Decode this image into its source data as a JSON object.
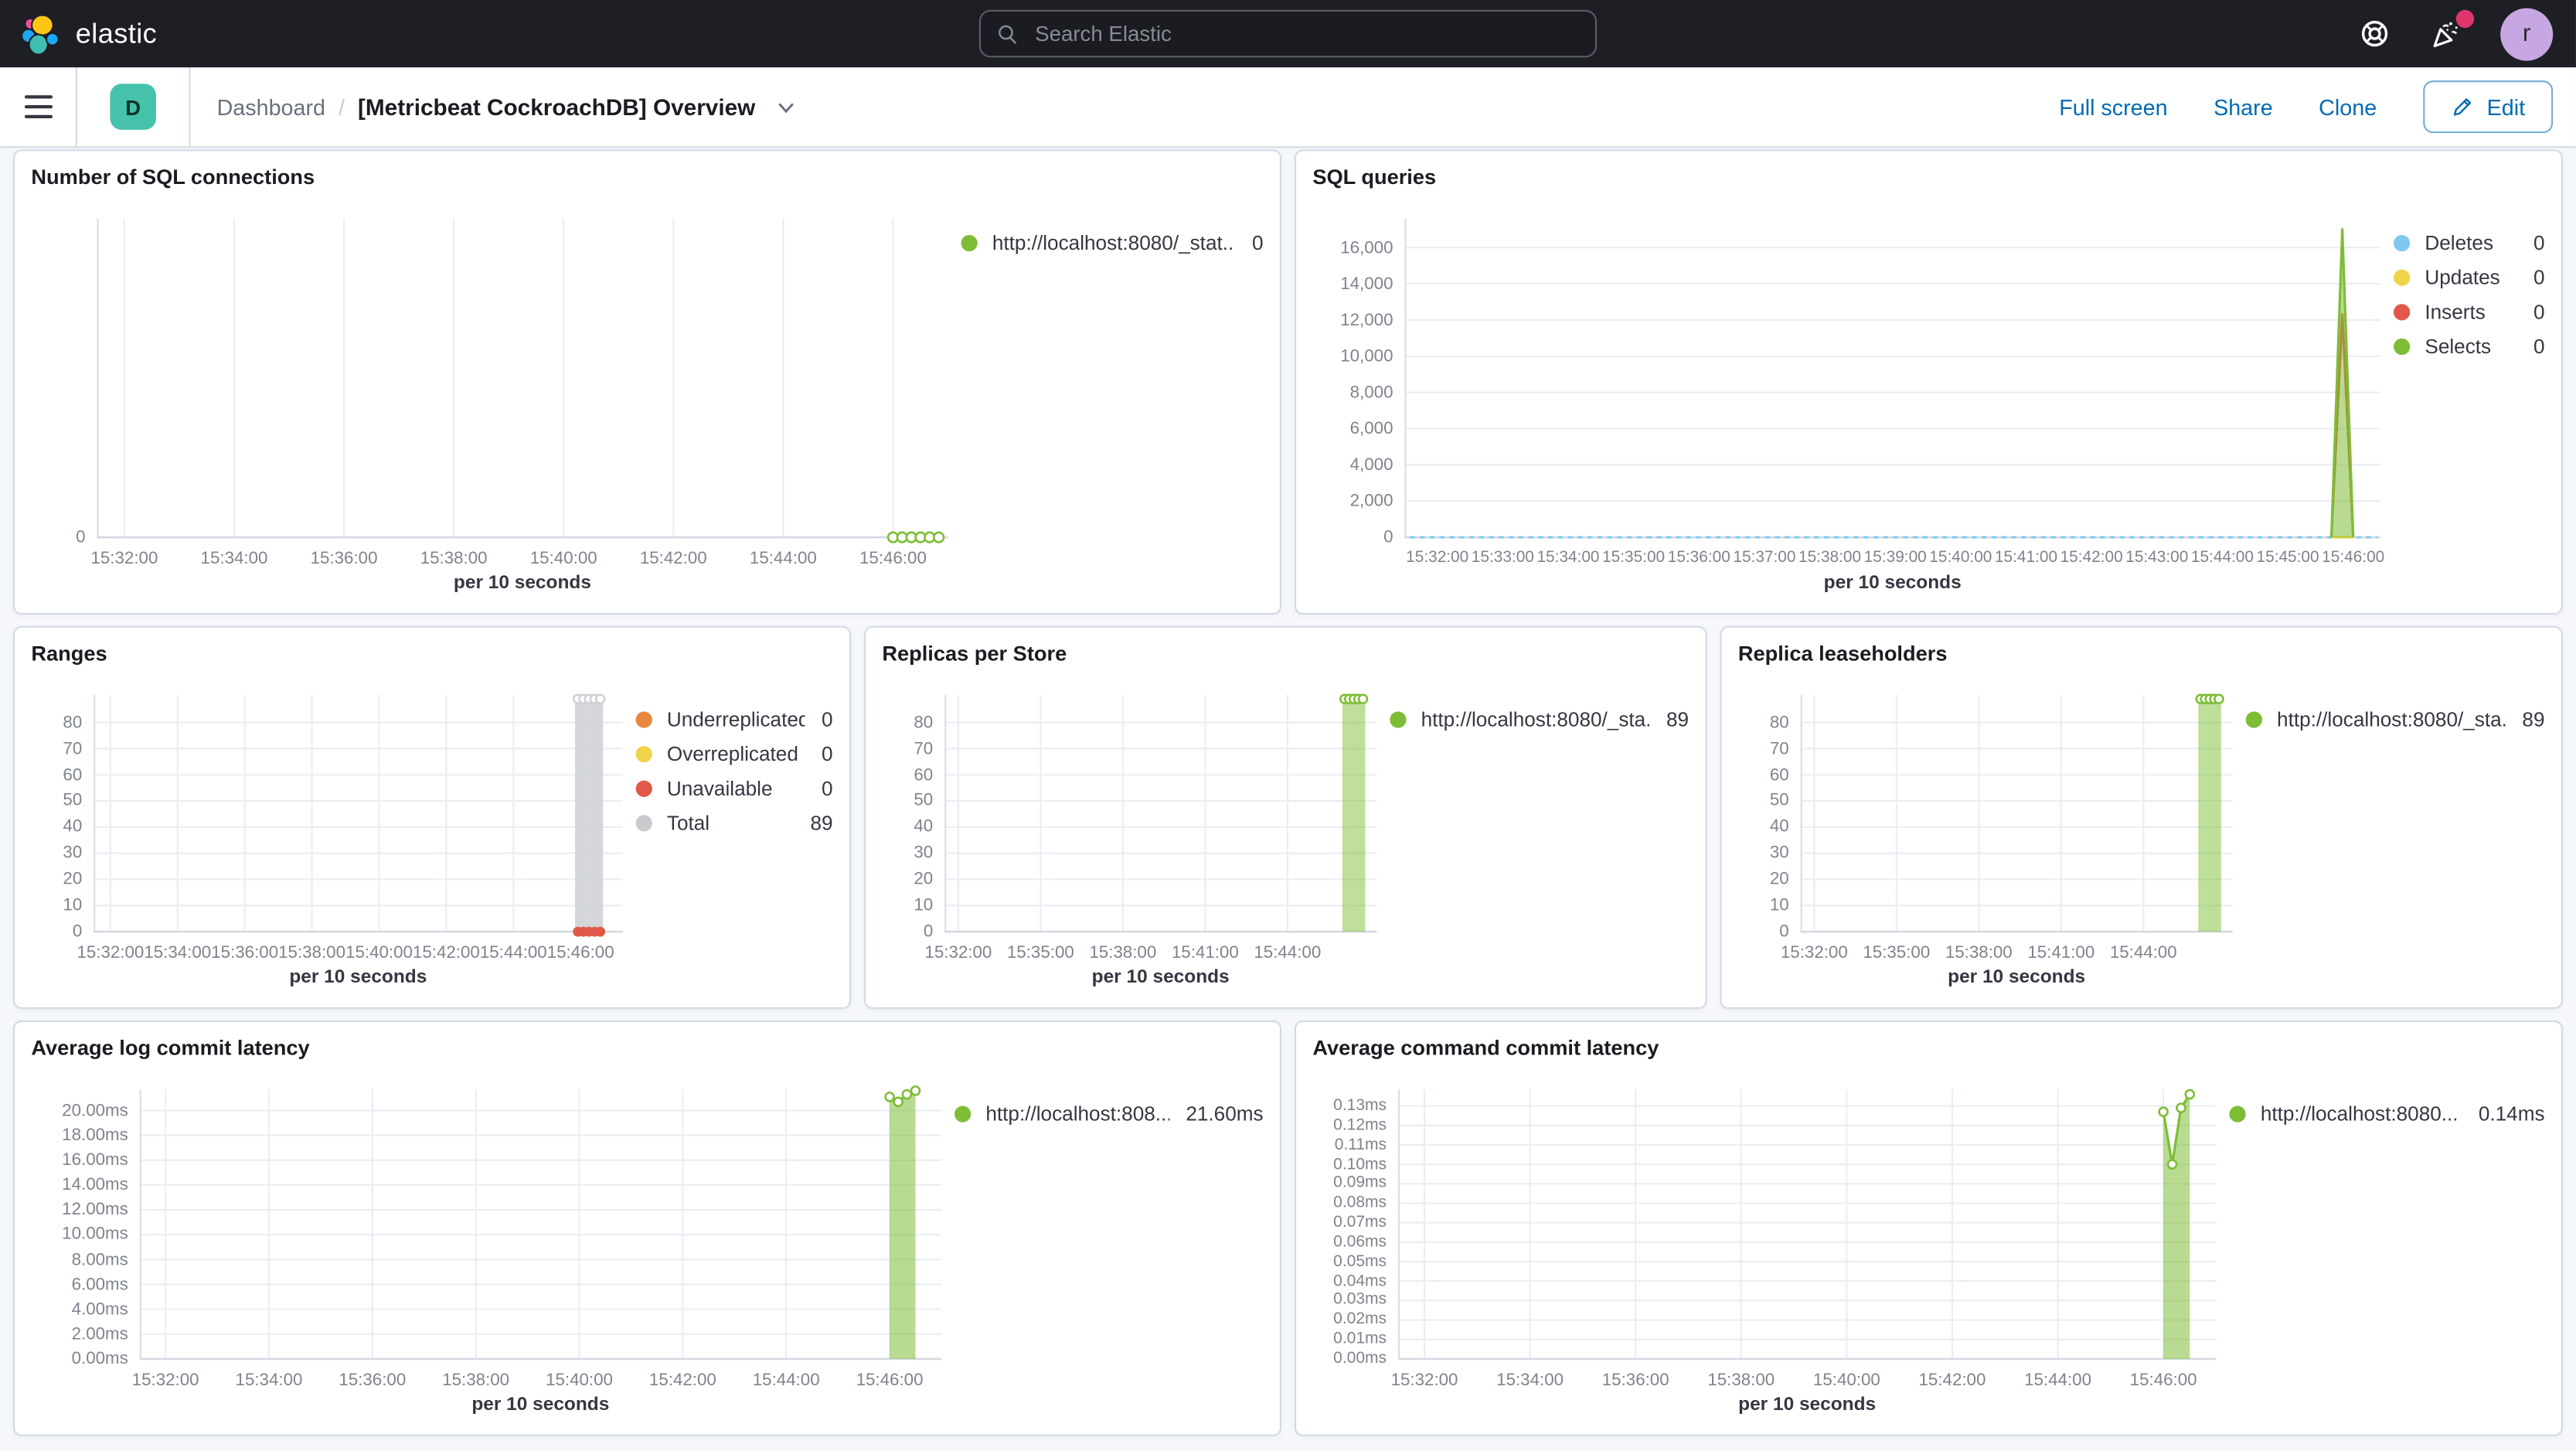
{
  "chrome": {
    "logo_text": "elastic",
    "search_placeholder": "Search Elastic",
    "avatar_initial": "r",
    "badge": "D",
    "breadcrumb_root": "Dashboard",
    "breadcrumb_sep": "/",
    "page_title": "[Metricbeat CockroachDB] Overview",
    "actions": {
      "full_screen": "Full screen",
      "share": "Share",
      "clone": "Clone",
      "edit": "Edit"
    }
  },
  "colors": {
    "header_bg": "#1d1f24",
    "link_blue": "#006bb4",
    "badge_teal": "#46c2aa",
    "series_green": "#7dbd36",
    "series_blue": "#7fc9f0",
    "series_yellow": "#f1d34b",
    "series_red": "#e0584a",
    "series_orange": "#e8883f",
    "series_gray": "#c9cbcf"
  },
  "panels": {
    "sql_connections": {
      "title": "Number of SQL connections",
      "axis_title": "per 10 seconds",
      "legend": [
        {
          "label": "http://localhost:8080/_stat...",
          "value": "0",
          "color": "#7dbd36"
        }
      ],
      "chart_data": {
        "type": "line",
        "x_domain": [
          "15:31:30",
          "15:47:00"
        ],
        "x_ticks": [
          "15:32:00",
          "15:34:00",
          "15:36:00",
          "15:38:00",
          "15:40:00",
          "15:42:00",
          "15:44:00",
          "15:46:00"
        ],
        "y_ticks": [
          {
            "label": "0",
            "v": 0
          }
        ],
        "ylim": [
          0,
          1
        ],
        "grid": {
          "v": true,
          "h": false
        },
        "series": [
          {
            "name": "http://localhost:8080/_stat...",
            "color": "#7dbd36",
            "type": "line",
            "width": 1.5,
            "markers": true,
            "marker_r": 3,
            "points": [
              [
                "15:46:00",
                0
              ],
              [
                "15:46:10",
                0
              ],
              [
                "15:46:20",
                0
              ],
              [
                "15:46:30",
                0
              ],
              [
                "15:46:40",
                0
              ],
              [
                "15:46:50",
                0
              ]
            ]
          }
        ]
      }
    },
    "sql_queries": {
      "title": "SQL queries",
      "axis_title": "per 10 seconds",
      "legend": [
        {
          "label": "Deletes",
          "value": "0",
          "color": "#7fc9f0"
        },
        {
          "label": "Updates",
          "value": "0",
          "color": "#f1d34b"
        },
        {
          "label": "Inserts",
          "value": "0",
          "color": "#e0584a"
        },
        {
          "label": "Selects",
          "value": "0",
          "color": "#7dbd36"
        }
      ],
      "chart_data": {
        "type": "line",
        "x_domain": [
          "15:31:30",
          "15:46:25"
        ],
        "x_ticks": [
          "15:32:00",
          "15:33:00",
          "15:34:00",
          "15:35:00",
          "15:36:00",
          "15:37:00",
          "15:38:00",
          "15:39:00",
          "15:40:00",
          "15:41:00",
          "15:42:00",
          "15:43:00",
          "15:44:00",
          "15:45:00",
          "15:46:00"
        ],
        "y_ticks": [
          {
            "label": "16,000",
            "v": 16000
          },
          {
            "label": "14,000",
            "v": 14000
          },
          {
            "label": "12,000",
            "v": 12000
          },
          {
            "label": "10,000",
            "v": 10000
          },
          {
            "label": "8,000",
            "v": 8000
          },
          {
            "label": "6,000",
            "v": 6000
          },
          {
            "label": "4,000",
            "v": 4000
          },
          {
            "label": "2,000",
            "v": 2000
          },
          {
            "label": "0",
            "v": 0
          }
        ],
        "ylim": [
          0,
          17600
        ],
        "grid": {
          "v": false,
          "h": true
        },
        "series": [
          {
            "name": "Deletes",
            "color": "#7fc9f0",
            "type": "line",
            "width": 1.5,
            "dash": "3,3",
            "points": [
              [
                "15:31:35",
                0
              ],
              [
                "15:46:22",
                0
              ]
            ]
          },
          {
            "name": "Updates",
            "color": "#f1d34b",
            "type": "line",
            "width": 1.5,
            "points": [
              [
                "15:45:40",
                0
              ],
              [
                "15:46:00",
                0
              ]
            ]
          },
          {
            "name": "Inserts",
            "color": "#e0584a",
            "type": "line",
            "width": 1.5,
            "points": [
              [
                "15:45:40",
                30
              ],
              [
                "15:45:50",
                12300
              ],
              [
                "15:46:00",
                30
              ]
            ]
          },
          {
            "name": "Selects",
            "color": "#7dbd36",
            "type": "area",
            "fill_opacity": 0.55,
            "width": 1.5,
            "points": [
              [
                "15:45:40",
                0
              ],
              [
                "15:45:50",
                17000
              ],
              [
                "15:46:00",
                0
              ]
            ]
          }
        ]
      }
    },
    "ranges": {
      "title": "Ranges",
      "axis_title": "per 10 seconds",
      "legend": [
        {
          "label": "Underreplicated",
          "value": "0",
          "color": "#e8883f"
        },
        {
          "label": "Overreplicated",
          "value": "0",
          "color": "#f1d34b"
        },
        {
          "label": "Unavailable",
          "value": "0",
          "color": "#e0584a"
        },
        {
          "label": "Total",
          "value": "89",
          "color": "#c9cbcf"
        }
      ],
      "chart_data": {
        "type": "bar",
        "x_domain": [
          "15:31:30",
          "15:47:15"
        ],
        "x_ticks": [
          "15:32:00",
          "15:34:00",
          "15:36:00",
          "15:38:00",
          "15:40:00",
          "15:42:00",
          "15:44:00",
          "15:46:00"
        ],
        "y_ticks": [
          {
            "label": "80",
            "v": 80
          },
          {
            "label": "70",
            "v": 70
          },
          {
            "label": "60",
            "v": 60
          },
          {
            "label": "50",
            "v": 50
          },
          {
            "label": "40",
            "v": 40
          },
          {
            "label": "30",
            "v": 30
          },
          {
            "label": "20",
            "v": 20
          },
          {
            "label": "10",
            "v": 10
          },
          {
            "label": "0",
            "v": 0
          }
        ],
        "ylim": [
          0,
          90.5
        ],
        "grid": {
          "v": true,
          "h": true
        },
        "series": [
          {
            "name": "Total",
            "color": "#cfd1d6",
            "type": "bar",
            "fill_opacity": 0.9,
            "bar_width_s": 10,
            "markers": true,
            "marker_r": 2.6,
            "points": [
              [
                "15:45:55",
                89
              ],
              [
                "15:46:05",
                89
              ],
              [
                "15:46:15",
                89
              ],
              [
                "15:46:25",
                89
              ],
              [
                "15:46:35",
                89
              ]
            ]
          },
          {
            "name": "Underreplicated",
            "color": "#e8883f",
            "type": "line",
            "line": false,
            "markers": true,
            "marker_r": 2.4,
            "marker_fill": "#e8883f",
            "points": [
              [
                "15:45:55",
                0
              ],
              [
                "15:46:05",
                0
              ],
              [
                "15:46:15",
                0
              ],
              [
                "15:46:25",
                0
              ],
              [
                "15:46:35",
                0
              ]
            ]
          },
          {
            "name": "Overreplicated",
            "color": "#f1d34b",
            "type": "line",
            "line": false,
            "markers": true,
            "marker_r": 2.4,
            "marker_fill": "#f1d34b",
            "points": [
              [
                "15:45:55",
                0
              ],
              [
                "15:46:05",
                0
              ],
              [
                "15:46:15",
                0
              ],
              [
                "15:46:25",
                0
              ],
              [
                "15:46:35",
                0
              ]
            ]
          },
          {
            "name": "Unavailable",
            "color": "#e0584a",
            "type": "line",
            "line": false,
            "markers": true,
            "marker_r": 2.4,
            "marker_fill": "#e0584a",
            "points": [
              [
                "15:45:55",
                0
              ],
              [
                "15:46:05",
                0
              ],
              [
                "15:46:15",
                0
              ],
              [
                "15:46:25",
                0
              ],
              [
                "15:46:35",
                0
              ]
            ]
          }
        ]
      }
    },
    "replicas": {
      "title": "Replicas per Store",
      "axis_title": "per 10 seconds",
      "legend": [
        {
          "label": "http://localhost:8080/_sta...",
          "value": "89",
          "color": "#7dbd36"
        }
      ],
      "chart_data": {
        "type": "bar",
        "x_domain": [
          "15:31:30",
          "15:47:15"
        ],
        "x_ticks": [
          "15:32:00",
          "15:35:00",
          "15:38:00",
          "15:41:00",
          "15:44:00"
        ],
        "y_ticks": [
          {
            "label": "80",
            "v": 80
          },
          {
            "label": "70",
            "v": 70
          },
          {
            "label": "60",
            "v": 60
          },
          {
            "label": "50",
            "v": 50
          },
          {
            "label": "40",
            "v": 40
          },
          {
            "label": "30",
            "v": 30
          },
          {
            "label": "20",
            "v": 20
          },
          {
            "label": "10",
            "v": 10
          },
          {
            "label": "0",
            "v": 0
          }
        ],
        "ylim": [
          0,
          90.5
        ],
        "grid": {
          "v": true,
          "h": true
        },
        "series": [
          {
            "name": "http://localhost:8080/_sta...",
            "color": "#7dbd36",
            "type": "bar",
            "fill_opacity": 0.5,
            "bar_width_s": 10,
            "markers": true,
            "marker_r": 2.6,
            "points": [
              [
                "15:46:05",
                89
              ],
              [
                "15:46:15",
                89
              ],
              [
                "15:46:25",
                89
              ],
              [
                "15:46:35",
                89
              ],
              [
                "15:46:45",
                89
              ]
            ]
          }
        ]
      }
    },
    "leaseholders": {
      "title": "Replica leaseholders",
      "axis_title": "per 10 seconds",
      "legend": [
        {
          "label": "http://localhost:8080/_sta...",
          "value": "89",
          "color": "#7dbd36"
        }
      ],
      "chart_data": {
        "type": "bar",
        "x_domain": [
          "15:31:30",
          "15:47:15"
        ],
        "x_ticks": [
          "15:32:00",
          "15:35:00",
          "15:38:00",
          "15:41:00",
          "15:44:00"
        ],
        "y_ticks": [
          {
            "label": "80",
            "v": 80
          },
          {
            "label": "70",
            "v": 70
          },
          {
            "label": "60",
            "v": 60
          },
          {
            "label": "50",
            "v": 50
          },
          {
            "label": "40",
            "v": 40
          },
          {
            "label": "30",
            "v": 30
          },
          {
            "label": "20",
            "v": 20
          },
          {
            "label": "10",
            "v": 10
          },
          {
            "label": "0",
            "v": 0
          }
        ],
        "ylim": [
          0,
          90.5
        ],
        "grid": {
          "v": true,
          "h": true
        },
        "series": [
          {
            "name": "http://localhost:8080/_sta...",
            "color": "#7dbd36",
            "type": "bar",
            "fill_opacity": 0.5,
            "bar_width_s": 10,
            "markers": true,
            "marker_r": 2.6,
            "points": [
              [
                "15:46:05",
                89
              ],
              [
                "15:46:15",
                89
              ],
              [
                "15:46:25",
                89
              ],
              [
                "15:46:35",
                89
              ],
              [
                "15:46:45",
                89
              ]
            ]
          }
        ]
      }
    },
    "log_latency": {
      "title": "Average log commit latency",
      "axis_title": "per 10 seconds",
      "legend": [
        {
          "label": "http://localhost:808...",
          "value": "21.60ms",
          "color": "#7dbd36"
        }
      ],
      "chart_data": {
        "type": "area",
        "x_domain": [
          "15:31:30",
          "15:47:00"
        ],
        "x_ticks": [
          "15:32:00",
          "15:34:00",
          "15:36:00",
          "15:38:00",
          "15:40:00",
          "15:42:00",
          "15:44:00",
          "15:46:00"
        ],
        "y_ticks": [
          {
            "label": "20.00ms",
            "v": 20
          },
          {
            "label": "18.00ms",
            "v": 18
          },
          {
            "label": "16.00ms",
            "v": 16
          },
          {
            "label": "14.00ms",
            "v": 14
          },
          {
            "label": "12.00ms",
            "v": 12
          },
          {
            "label": "10.00ms",
            "v": 10
          },
          {
            "label": "8.00ms",
            "v": 8
          },
          {
            "label": "6.00ms",
            "v": 6
          },
          {
            "label": "4.00ms",
            "v": 4
          },
          {
            "label": "2.00ms",
            "v": 2
          },
          {
            "label": "0.00ms",
            "v": 0
          }
        ],
        "ylim": [
          0,
          21.7
        ],
        "grid": {
          "v": true,
          "h": true
        },
        "series": [
          {
            "name": "http://localhost:808...",
            "color": "#7dbd36",
            "type": "area",
            "fill_opacity": 0.55,
            "width": 1.5,
            "markers": true,
            "marker_r": 2.6,
            "points": [
              [
                "15:46:00",
                21.1
              ],
              [
                "15:46:10",
                20.7
              ],
              [
                "15:46:20",
                21.3
              ],
              [
                "15:46:30",
                21.6
              ]
            ]
          }
        ]
      }
    },
    "cmd_latency": {
      "title": "Average command commit latency",
      "axis_title": "per 10 seconds",
      "legend": [
        {
          "label": "http://localhost:8080...",
          "value": "0.14ms",
          "color": "#7dbd36"
        }
      ],
      "chart_data": {
        "type": "area",
        "x_domain": [
          "15:31:30",
          "15:47:00"
        ],
        "x_ticks": [
          "15:32:00",
          "15:34:00",
          "15:36:00",
          "15:38:00",
          "15:40:00",
          "15:42:00",
          "15:44:00",
          "15:46:00"
        ],
        "y_ticks": [
          {
            "label": "0.13ms",
            "v": 0.13
          },
          {
            "label": "0.12ms",
            "v": 0.12
          },
          {
            "label": "0.11ms",
            "v": 0.11
          },
          {
            "label": "0.10ms",
            "v": 0.1
          },
          {
            "label": "0.09ms",
            "v": 0.09
          },
          {
            "label": "0.08ms",
            "v": 0.08
          },
          {
            "label": "0.07ms",
            "v": 0.07
          },
          {
            "label": "0.06ms",
            "v": 0.06
          },
          {
            "label": "0.05ms",
            "v": 0.05
          },
          {
            "label": "0.04ms",
            "v": 0.04
          },
          {
            "label": "0.03ms",
            "v": 0.03
          },
          {
            "label": "0.02ms",
            "v": 0.02
          },
          {
            "label": "0.01ms",
            "v": 0.01
          },
          {
            "label": "0.00ms",
            "v": 0.0
          }
        ],
        "ylim": [
          0,
          0.1385
        ],
        "grid": {
          "v": true,
          "h": true
        },
        "series": [
          {
            "name": "http://localhost:8080...",
            "color": "#7dbd36",
            "type": "area",
            "fill_opacity": 0.55,
            "width": 1.5,
            "markers": true,
            "marker_r": 2.6,
            "points": [
              [
                "15:46:00",
                0.127
              ],
              [
                "15:46:10",
                0.1
              ],
              [
                "15:46:20",
                0.129
              ],
              [
                "15:46:30",
                0.136
              ]
            ]
          }
        ]
      }
    }
  }
}
